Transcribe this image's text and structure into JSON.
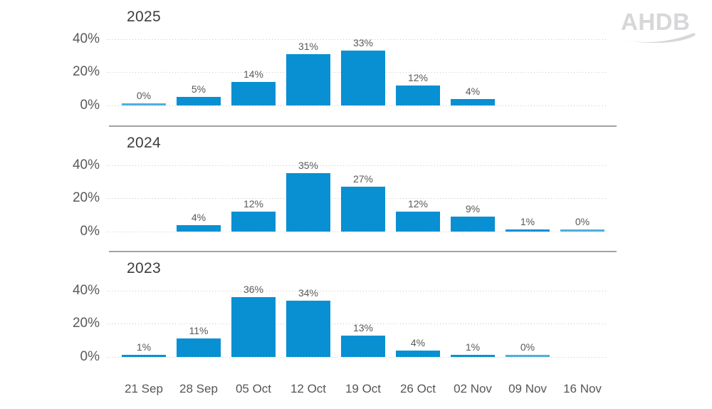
{
  "logo": {
    "text": "AHDB",
    "color": "#d7d7d9"
  },
  "colors": {
    "bar": "#0890d3",
    "zero_bar": "#4fafdf",
    "grid": "#c7c7c7",
    "separator": "#a3a3a3",
    "title": "#3d3d3d",
    "label": "#595959"
  },
  "chart_data": {
    "type": "bar",
    "description": "Three stacked small-multiple bar charts of weekly percentages by year",
    "categories": [
      "21 Sep",
      "28 Sep",
      "05 Oct",
      "12 Oct",
      "19 Oct",
      "26 Oct",
      "02 Nov",
      "09 Nov",
      "16 Nov"
    ],
    "yticks": [
      {
        "label": "40%",
        "value": 40
      },
      {
        "label": "20%",
        "value": 20
      },
      {
        "label": "0%",
        "value": 0
      }
    ],
    "ylim": [
      0,
      45
    ],
    "grid": "dotted horizontal gridlines at 0/20/40",
    "legend": "none",
    "panels": [
      {
        "title": "2025",
        "values": [
          0,
          5,
          14,
          31,
          33,
          12,
          4,
          null,
          null
        ],
        "labels": [
          "0%",
          "5%",
          "14%",
          "31%",
          "33%",
          "12%",
          "4%",
          null,
          null
        ]
      },
      {
        "title": "2024",
        "values": [
          null,
          4,
          12,
          35,
          27,
          12,
          9,
          1,
          0
        ],
        "labels": [
          null,
          "4%",
          "12%",
          "35%",
          "27%",
          "12%",
          "9%",
          "1%",
          "0%"
        ]
      },
      {
        "title": "2023",
        "values": [
          1,
          11,
          36,
          34,
          13,
          4,
          1,
          0,
          null
        ],
        "labels": [
          "1%",
          "11%",
          "36%",
          "34%",
          "13%",
          "4%",
          "1%",
          "0%",
          null
        ]
      }
    ]
  }
}
